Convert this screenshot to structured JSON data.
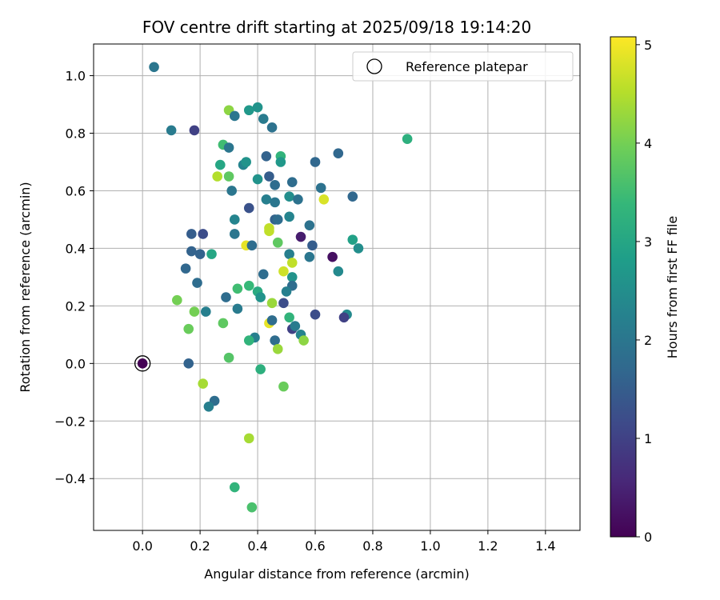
{
  "chart_data": {
    "type": "scatter",
    "title": "FOV centre drift starting at 2025/09/18 19:14:20",
    "xlabel": "Angular distance from reference (arcmin)",
    "ylabel": "Rotation from reference (arcmin)",
    "xlim": [
      -0.17,
      1.52
    ],
    "ylim": [
      -0.58,
      1.11
    ],
    "xticks": [
      "0.0",
      "0.2",
      "0.4",
      "0.6",
      "0.8",
      "1.0",
      "1.2",
      "1.4"
    ],
    "yticks": [
      "−0.4",
      "−0.2",
      "0.0",
      "0.2",
      "0.4",
      "0.6",
      "0.8",
      "1.0"
    ],
    "xtick_values": [
      0.0,
      0.2,
      0.4,
      0.6,
      0.8,
      1.0,
      1.2,
      1.4
    ],
    "ytick_values": [
      -0.4,
      -0.2,
      0.0,
      0.2,
      0.4,
      0.6,
      0.8,
      1.0
    ],
    "grid": true,
    "legend": {
      "position": "top-right",
      "label": "Reference platepar"
    },
    "reference": {
      "x": 0.0,
      "y": 0.0,
      "c": 0.0
    },
    "colorbar": {
      "label": "Hours from first FF file",
      "range": [
        0,
        5.08
      ],
      "ticks": [
        "0",
        "1",
        "2",
        "3",
        "4",
        "5"
      ],
      "tick_values": [
        0,
        1,
        2,
        3,
        4,
        5
      ],
      "colors": [
        "#440154",
        "#482878",
        "#3e4989",
        "#31688e",
        "#26828e",
        "#1f9e89",
        "#35b779",
        "#6ece58",
        "#b5de2b",
        "#fde725"
      ]
    },
    "points": [
      {
        "x": 0.04,
        "y": 1.03,
        "c": 2.0
      },
      {
        "x": 0.1,
        "y": 0.81,
        "c": 2.1
      },
      {
        "x": 0.18,
        "y": 0.81,
        "c": 1.0
      },
      {
        "x": 0.3,
        "y": 0.88,
        "c": 4.2
      },
      {
        "x": 0.32,
        "y": 0.86,
        "c": 2.0
      },
      {
        "x": 0.37,
        "y": 0.88,
        "c": 2.7
      },
      {
        "x": 0.4,
        "y": 0.89,
        "c": 2.6
      },
      {
        "x": 0.42,
        "y": 0.85,
        "c": 2.1
      },
      {
        "x": 0.45,
        "y": 0.82,
        "c": 1.9
      },
      {
        "x": 0.92,
        "y": 0.78,
        "c": 3.2
      },
      {
        "x": 0.28,
        "y": 0.76,
        "c": 3.5
      },
      {
        "x": 0.3,
        "y": 0.75,
        "c": 2.0
      },
      {
        "x": 0.48,
        "y": 0.72,
        "c": 3.3
      },
      {
        "x": 0.43,
        "y": 0.72,
        "c": 1.6
      },
      {
        "x": 0.68,
        "y": 0.73,
        "c": 1.7
      },
      {
        "x": 0.27,
        "y": 0.69,
        "c": 3.0
      },
      {
        "x": 0.35,
        "y": 0.69,
        "c": 2.3
      },
      {
        "x": 0.36,
        "y": 0.7,
        "c": 2.6
      },
      {
        "x": 0.48,
        "y": 0.7,
        "c": 2.7
      },
      {
        "x": 0.6,
        "y": 0.7,
        "c": 1.7
      },
      {
        "x": 0.26,
        "y": 0.65,
        "c": 4.5
      },
      {
        "x": 0.3,
        "y": 0.65,
        "c": 3.8
      },
      {
        "x": 0.4,
        "y": 0.64,
        "c": 2.6
      },
      {
        "x": 0.44,
        "y": 0.65,
        "c": 1.5
      },
      {
        "x": 0.46,
        "y": 0.62,
        "c": 1.8
      },
      {
        "x": 0.52,
        "y": 0.63,
        "c": 1.8
      },
      {
        "x": 0.62,
        "y": 0.61,
        "c": 1.9
      },
      {
        "x": 0.31,
        "y": 0.6,
        "c": 2.0
      },
      {
        "x": 0.43,
        "y": 0.57,
        "c": 2.2
      },
      {
        "x": 0.46,
        "y": 0.56,
        "c": 2.0
      },
      {
        "x": 0.51,
        "y": 0.58,
        "c": 2.5
      },
      {
        "x": 0.54,
        "y": 0.57,
        "c": 1.9
      },
      {
        "x": 0.73,
        "y": 0.58,
        "c": 1.7
      },
      {
        "x": 0.63,
        "y": 0.57,
        "c": 4.8
      },
      {
        "x": 0.37,
        "y": 0.54,
        "c": 1.3
      },
      {
        "x": 0.32,
        "y": 0.5,
        "c": 2.3
      },
      {
        "x": 0.46,
        "y": 0.5,
        "c": 1.6
      },
      {
        "x": 0.47,
        "y": 0.5,
        "c": 1.8
      },
      {
        "x": 0.51,
        "y": 0.51,
        "c": 2.3
      },
      {
        "x": 0.58,
        "y": 0.48,
        "c": 1.9
      },
      {
        "x": 0.44,
        "y": 0.47,
        "c": 4.6
      },
      {
        "x": 0.44,
        "y": 0.46,
        "c": 4.6
      },
      {
        "x": 0.17,
        "y": 0.45,
        "c": 1.5
      },
      {
        "x": 0.21,
        "y": 0.45,
        "c": 1.2
      },
      {
        "x": 0.32,
        "y": 0.45,
        "c": 2.0
      },
      {
        "x": 0.55,
        "y": 0.44,
        "c": 0.4
      },
      {
        "x": 0.73,
        "y": 0.43,
        "c": 2.9
      },
      {
        "x": 0.47,
        "y": 0.42,
        "c": 3.8
      },
      {
        "x": 0.36,
        "y": 0.41,
        "c": 4.9
      },
      {
        "x": 0.38,
        "y": 0.41,
        "c": 1.8
      },
      {
        "x": 0.59,
        "y": 0.41,
        "c": 1.5
      },
      {
        "x": 0.75,
        "y": 0.4,
        "c": 2.5
      },
      {
        "x": 0.17,
        "y": 0.39,
        "c": 1.6
      },
      {
        "x": 0.2,
        "y": 0.38,
        "c": 1.6
      },
      {
        "x": 0.24,
        "y": 0.38,
        "c": 3.0
      },
      {
        "x": 0.51,
        "y": 0.38,
        "c": 2.2
      },
      {
        "x": 0.58,
        "y": 0.37,
        "c": 2.0
      },
      {
        "x": 0.66,
        "y": 0.37,
        "c": 0.2
      },
      {
        "x": 0.52,
        "y": 0.35,
        "c": 4.6
      },
      {
        "x": 0.15,
        "y": 0.33,
        "c": 1.7
      },
      {
        "x": 0.68,
        "y": 0.32,
        "c": 2.4
      },
      {
        "x": 0.49,
        "y": 0.32,
        "c": 4.7
      },
      {
        "x": 0.42,
        "y": 0.31,
        "c": 1.8
      },
      {
        "x": 0.52,
        "y": 0.3,
        "c": 2.6
      },
      {
        "x": 0.19,
        "y": 0.28,
        "c": 1.8
      },
      {
        "x": 0.37,
        "y": 0.27,
        "c": 3.4
      },
      {
        "x": 0.52,
        "y": 0.27,
        "c": 1.8
      },
      {
        "x": 0.33,
        "y": 0.26,
        "c": 3.5
      },
      {
        "x": 0.4,
        "y": 0.25,
        "c": 3.1
      },
      {
        "x": 0.5,
        "y": 0.25,
        "c": 2.2
      },
      {
        "x": 0.41,
        "y": 0.23,
        "c": 2.6
      },
      {
        "x": 0.29,
        "y": 0.23,
        "c": 1.8
      },
      {
        "x": 0.12,
        "y": 0.22,
        "c": 4.0
      },
      {
        "x": 0.45,
        "y": 0.21,
        "c": 4.3
      },
      {
        "x": 0.49,
        "y": 0.21,
        "c": 1.2
      },
      {
        "x": 0.18,
        "y": 0.18,
        "c": 4.0
      },
      {
        "x": 0.22,
        "y": 0.18,
        "c": 2.2
      },
      {
        "x": 0.33,
        "y": 0.19,
        "c": 2.1
      },
      {
        "x": 0.6,
        "y": 0.17,
        "c": 1.2
      },
      {
        "x": 0.71,
        "y": 0.17,
        "c": 2.4
      },
      {
        "x": 0.51,
        "y": 0.16,
        "c": 3.3
      },
      {
        "x": 0.7,
        "y": 0.16,
        "c": 1.0
      },
      {
        "x": 0.44,
        "y": 0.14,
        "c": 4.9
      },
      {
        "x": 0.45,
        "y": 0.15,
        "c": 1.8
      },
      {
        "x": 0.28,
        "y": 0.14,
        "c": 3.8
      },
      {
        "x": 0.16,
        "y": 0.12,
        "c": 3.9
      },
      {
        "x": 0.52,
        "y": 0.12,
        "c": 1.0
      },
      {
        "x": 0.53,
        "y": 0.13,
        "c": 2.1
      },
      {
        "x": 0.55,
        "y": 0.1,
        "c": 2.3
      },
      {
        "x": 0.56,
        "y": 0.08,
        "c": 4.2
      },
      {
        "x": 0.39,
        "y": 0.09,
        "c": 2.2
      },
      {
        "x": 0.37,
        "y": 0.08,
        "c": 3.3
      },
      {
        "x": 0.46,
        "y": 0.08,
        "c": 1.8
      },
      {
        "x": 0.47,
        "y": 0.05,
        "c": 4.3
      },
      {
        "x": 0.3,
        "y": 0.02,
        "c": 3.7
      },
      {
        "x": 0.16,
        "y": 0.0,
        "c": 1.6
      },
      {
        "x": 0.41,
        "y": -0.02,
        "c": 3.2
      },
      {
        "x": 0.21,
        "y": -0.07,
        "c": 4.4
      },
      {
        "x": 0.49,
        "y": -0.08,
        "c": 3.9
      },
      {
        "x": 0.25,
        "y": -0.13,
        "c": 1.8
      },
      {
        "x": 0.23,
        "y": -0.15,
        "c": 2.2
      },
      {
        "x": 0.37,
        "y": -0.26,
        "c": 4.4
      },
      {
        "x": 0.32,
        "y": -0.43,
        "c": 3.3
      },
      {
        "x": 0.38,
        "y": -0.5,
        "c": 3.6
      }
    ]
  }
}
